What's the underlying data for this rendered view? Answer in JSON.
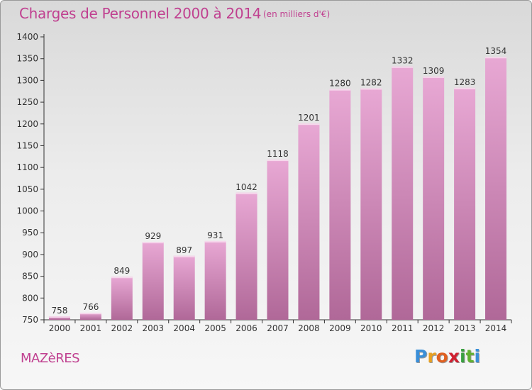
{
  "header": {
    "title": "Charges de Personnel 2000 à 2014",
    "subtitle": "(en milliers d'€)"
  },
  "footer": {
    "commune": "MAZèRES",
    "brand_letters": [
      "P",
      "r",
      "o",
      "x",
      "i",
      "t",
      "i"
    ],
    "brand_colors": [
      "#3a8fd8",
      "#e8a020",
      "#e06020",
      "#d02030",
      "#3aa040",
      "#60b030",
      "#3a8fd8"
    ]
  },
  "colors": {
    "accent": "#c04090",
    "bar_top": "#e8a8d4",
    "bar_bottom": "#b06898",
    "axis": "#333333"
  },
  "chart_data": {
    "type": "bar",
    "title": "Charges de Personnel 2000 à 2014",
    "subtitle": "(en milliers d'€)",
    "categories": [
      "2000",
      "2001",
      "2002",
      "2003",
      "2004",
      "2005",
      "2006",
      "2007",
      "2008",
      "2009",
      "2010",
      "2011",
      "2012",
      "2013",
      "2014"
    ],
    "values": [
      758,
      766,
      849,
      929,
      897,
      931,
      1042,
      1118,
      1201,
      1280,
      1282,
      1332,
      1309,
      1283,
      1354
    ],
    "ylim": [
      750,
      1400
    ],
    "yticks": [
      750,
      800,
      850,
      900,
      950,
      1000,
      1050,
      1100,
      1150,
      1200,
      1250,
      1300,
      1350,
      1400
    ],
    "xlabel": "",
    "ylabel": "",
    "grid": false,
    "legend": "none"
  }
}
